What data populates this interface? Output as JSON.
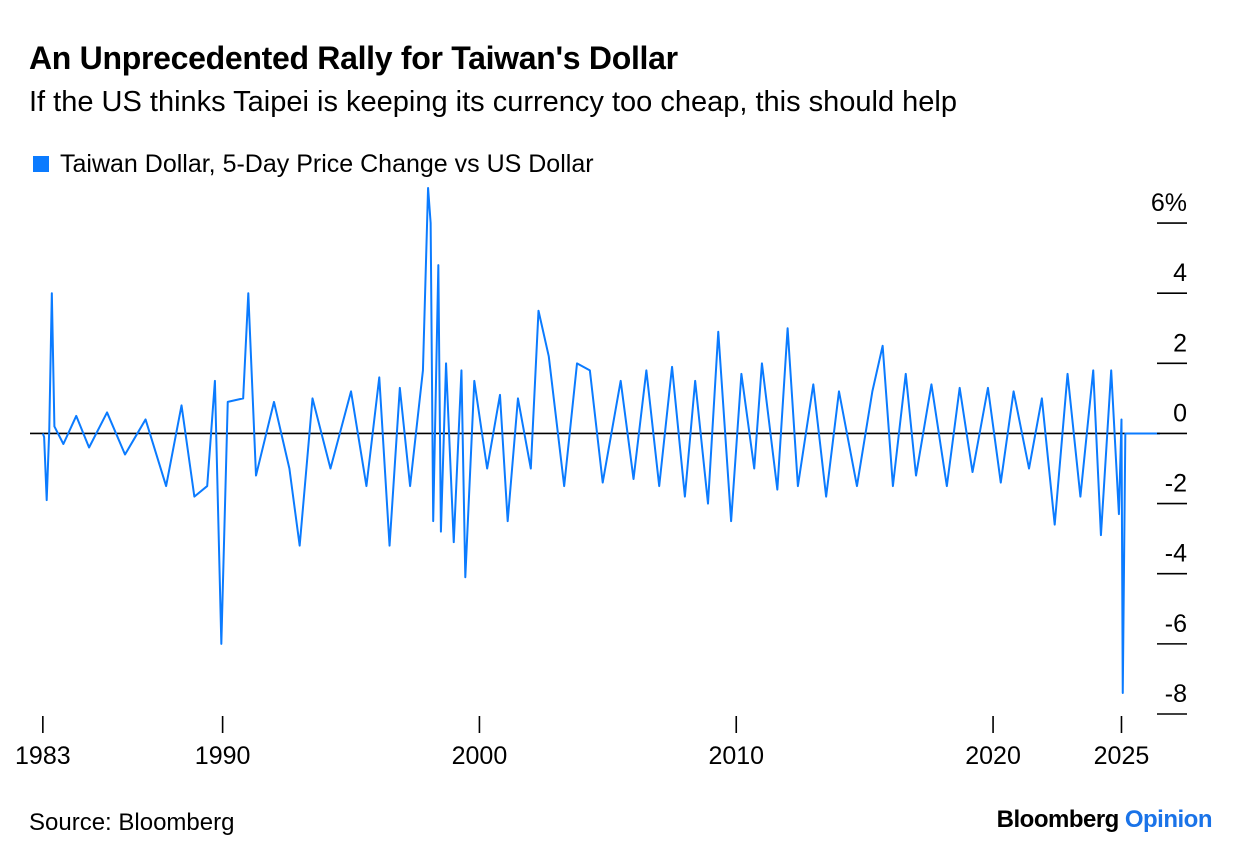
{
  "title": "An Unprecedented Rally for Taiwan's Dollar",
  "subtitle": "If the US thinks Taipei is keeping its currency too cheap, this should help",
  "source": "Source: Bloomberg",
  "brand": {
    "name": "Bloomberg",
    "product": "Opinion",
    "product_color": "#1a73e8"
  },
  "chart_data": {
    "type": "line",
    "legend": [
      {
        "name": "Taiwan Dollar, 5-Day Price Change vs US Dollar",
        "color": "#0b7bff"
      }
    ],
    "series": [
      {
        "name": "Taiwan Dollar, 5-Day Price Change vs US Dollar",
        "color": "#0b7bff",
        "points": [
          [
            1983.0,
            0.0
          ],
          [
            1983.05,
            -0.1
          ],
          [
            1983.15,
            -1.9
          ],
          [
            1983.25,
            0.1
          ],
          [
            1983.35,
            4.0
          ],
          [
            1983.45,
            0.2
          ],
          [
            1983.8,
            -0.3
          ],
          [
            1984.3,
            0.5
          ],
          [
            1984.8,
            -0.4
          ],
          [
            1985.5,
            0.6
          ],
          [
            1986.2,
            -0.6
          ],
          [
            1987.0,
            0.4
          ],
          [
            1987.8,
            -1.5
          ],
          [
            1988.4,
            0.8
          ],
          [
            1988.9,
            -1.8
          ],
          [
            1989.4,
            -1.5
          ],
          [
            1989.7,
            1.5
          ],
          [
            1989.95,
            -6.0
          ],
          [
            1990.2,
            0.9
          ],
          [
            1990.8,
            1.0
          ],
          [
            1991.0,
            4.0
          ],
          [
            1991.3,
            -1.2
          ],
          [
            1992.0,
            0.9
          ],
          [
            1992.6,
            -1.0
          ],
          [
            1993.0,
            -3.2
          ],
          [
            1993.5,
            1.0
          ],
          [
            1994.2,
            -1.0
          ],
          [
            1995.0,
            1.2
          ],
          [
            1995.6,
            -1.5
          ],
          [
            1996.1,
            1.6
          ],
          [
            1996.5,
            -3.2
          ],
          [
            1996.9,
            1.3
          ],
          [
            1997.3,
            -1.5
          ],
          [
            1997.8,
            1.8
          ],
          [
            1998.0,
            7.0
          ],
          [
            1998.1,
            6.0
          ],
          [
            1998.2,
            -2.5
          ],
          [
            1998.4,
            4.8
          ],
          [
            1998.5,
            -2.8
          ],
          [
            1998.7,
            2.0
          ],
          [
            1999.0,
            -3.1
          ],
          [
            1999.3,
            1.8
          ],
          [
            1999.45,
            -4.1
          ],
          [
            1999.8,
            1.5
          ],
          [
            2000.3,
            -1.0
          ],
          [
            2000.8,
            1.1
          ],
          [
            2001.1,
            -2.5
          ],
          [
            2001.5,
            1.0
          ],
          [
            2002.0,
            -1.0
          ],
          [
            2002.3,
            3.5
          ],
          [
            2002.7,
            2.2
          ],
          [
            2003.3,
            -1.5
          ],
          [
            2003.8,
            2.0
          ],
          [
            2004.3,
            1.8
          ],
          [
            2004.8,
            -1.4
          ],
          [
            2005.5,
            1.5
          ],
          [
            2006.0,
            -1.3
          ],
          [
            2006.5,
            1.8
          ],
          [
            2007.0,
            -1.5
          ],
          [
            2007.5,
            1.9
          ],
          [
            2008.0,
            -1.8
          ],
          [
            2008.4,
            1.5
          ],
          [
            2008.9,
            -2.0
          ],
          [
            2009.3,
            2.9
          ],
          [
            2009.8,
            -2.5
          ],
          [
            2010.2,
            1.7
          ],
          [
            2010.7,
            -1.0
          ],
          [
            2011.0,
            2.0
          ],
          [
            2011.6,
            -1.6
          ],
          [
            2012.0,
            3.0
          ],
          [
            2012.4,
            -1.5
          ],
          [
            2013.0,
            1.4
          ],
          [
            2013.5,
            -1.8
          ],
          [
            2014.0,
            1.2
          ],
          [
            2014.7,
            -1.5
          ],
          [
            2015.3,
            1.2
          ],
          [
            2015.7,
            2.5
          ],
          [
            2016.1,
            -1.5
          ],
          [
            2016.6,
            1.7
          ],
          [
            2017.0,
            -1.2
          ],
          [
            2017.6,
            1.4
          ],
          [
            2018.2,
            -1.5
          ],
          [
            2018.7,
            1.3
          ],
          [
            2019.2,
            -1.1
          ],
          [
            2019.8,
            1.3
          ],
          [
            2020.3,
            -1.4
          ],
          [
            2020.8,
            1.2
          ],
          [
            2021.4,
            -1.0
          ],
          [
            2021.9,
            1.0
          ],
          [
            2022.4,
            -2.6
          ],
          [
            2022.9,
            1.7
          ],
          [
            2023.4,
            -1.8
          ],
          [
            2023.9,
            1.8
          ],
          [
            2024.2,
            -2.9
          ],
          [
            2024.6,
            1.8
          ],
          [
            2024.9,
            -2.3
          ],
          [
            2025.0,
            0.4
          ],
          [
            2025.05,
            -7.4
          ],
          [
            2025.15,
            0.0
          ],
          [
            2026.5,
            0.0
          ]
        ]
      }
    ],
    "xlim": [
      1982.5,
      2026.5
    ],
    "ylim": [
      -8.0,
      7.0
    ],
    "x_ticks": [
      {
        "value": 1983,
        "label": "1983"
      },
      {
        "value": 1990,
        "label": "1990"
      },
      {
        "value": 2000,
        "label": "2000"
      },
      {
        "value": 2010,
        "label": "2010"
      },
      {
        "value": 2020,
        "label": "2020"
      },
      {
        "value": 2025,
        "label": "2025"
      }
    ],
    "y_ticks": [
      {
        "value": 6,
        "label": "6%"
      },
      {
        "value": 4,
        "label": "4"
      },
      {
        "value": 2,
        "label": "2"
      },
      {
        "value": 0,
        "label": "0"
      },
      {
        "value": -2,
        "label": "-2"
      },
      {
        "value": -4,
        "label": "-4"
      },
      {
        "value": -6,
        "label": "-6"
      },
      {
        "value": -8,
        "label": "-8"
      }
    ],
    "zero_line": true,
    "grid": false,
    "y_axis_side": "right",
    "legend_position": "top-left"
  }
}
